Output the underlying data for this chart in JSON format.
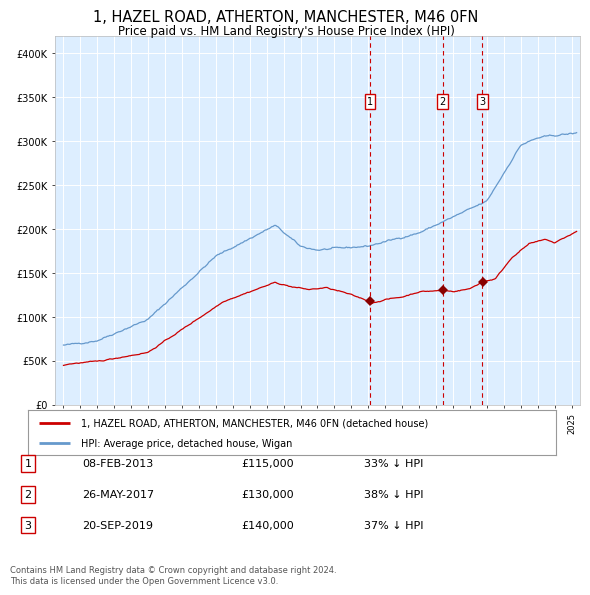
{
  "title": "1, HAZEL ROAD, ATHERTON, MANCHESTER, M46 0FN",
  "subtitle": "Price paid vs. HM Land Registry's House Price Index (HPI)",
  "title_fontsize": 10.5,
  "subtitle_fontsize": 9,
  "background_color": "#ffffff",
  "plot_bg_color": "#ddeeff",
  "legend_entries": [
    "1, HAZEL ROAD, ATHERTON, MANCHESTER, M46 0FN (detached house)",
    "HPI: Average price, detached house, Wigan"
  ],
  "red_line_color": "#cc0000",
  "blue_line_color": "#6699cc",
  "sale_marker_color": "#880000",
  "vline_color": "#cc0000",
  "transactions": [
    {
      "num": 1,
      "date_num": 2013.1,
      "price": 115000,
      "label": "08-FEB-2013",
      "pct": "33% ↓ HPI"
    },
    {
      "num": 2,
      "date_num": 2017.4,
      "price": 130000,
      "label": "26-MAY-2017",
      "pct": "38% ↓ HPI"
    },
    {
      "num": 3,
      "date_num": 2019.73,
      "price": 140000,
      "label": "20-SEP-2019",
      "pct": "37% ↓ HPI"
    }
  ],
  "footer": "Contains HM Land Registry data © Crown copyright and database right 2024.\nThis data is licensed under the Open Government Licence v3.0.",
  "ylabel_ticks": [
    "£0",
    "£50K",
    "£100K",
    "£150K",
    "£200K",
    "£250K",
    "£300K",
    "£350K",
    "£400K"
  ],
  "ytick_values": [
    0,
    50000,
    100000,
    150000,
    200000,
    250000,
    300000,
    350000,
    400000
  ],
  "xlim": [
    1994.5,
    2025.5
  ],
  "ylim": [
    0,
    420000
  ]
}
